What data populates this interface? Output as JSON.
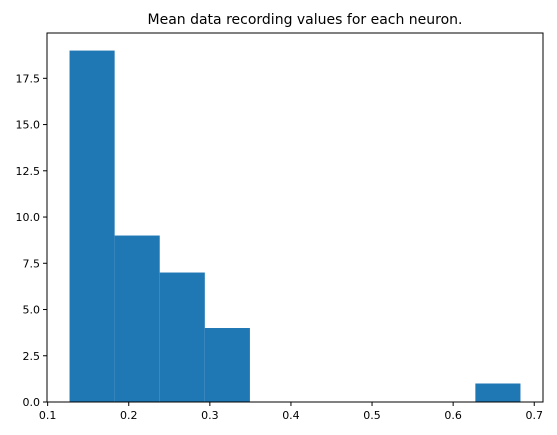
{
  "chart_data": {
    "type": "bar",
    "title": "Mean data recording values for each neuron.",
    "xlabel": "",
    "ylabel": "",
    "bins": [
      {
        "start": 0.127,
        "end": 0.1826,
        "count": 19
      },
      {
        "start": 0.1826,
        "end": 0.2382,
        "count": 9
      },
      {
        "start": 0.2382,
        "end": 0.2938,
        "count": 7
      },
      {
        "start": 0.2938,
        "end": 0.3494,
        "count": 4
      },
      {
        "start": 0.3494,
        "end": 0.405,
        "count": 0
      },
      {
        "start": 0.405,
        "end": 0.4606,
        "count": 0
      },
      {
        "start": 0.4606,
        "end": 0.5162,
        "count": 0
      },
      {
        "start": 0.5162,
        "end": 0.5718,
        "count": 0
      },
      {
        "start": 0.5718,
        "end": 0.6274,
        "count": 0
      },
      {
        "start": 0.6274,
        "end": 0.683,
        "count": 1
      }
    ],
    "xlim": [
      0.0992,
      0.7108
    ],
    "ylim": [
      0,
      19.95
    ],
    "xticks": [
      0.1,
      0.2,
      0.3,
      0.4,
      0.5,
      0.6,
      0.7
    ],
    "xtick_labels": [
      "0.1",
      "0.2",
      "0.3",
      "0.4",
      "0.5",
      "0.6",
      "0.7"
    ],
    "yticks": [
      0,
      2.5,
      5,
      7.5,
      10,
      12.5,
      15,
      17.5
    ],
    "ytick_labels": [
      "0.0",
      "2.5",
      "5.0",
      "7.5",
      "10.0",
      "12.5",
      "15.0",
      "17.5"
    ],
    "bar_color": "#1f77b4",
    "grid": false,
    "legend": "none"
  }
}
